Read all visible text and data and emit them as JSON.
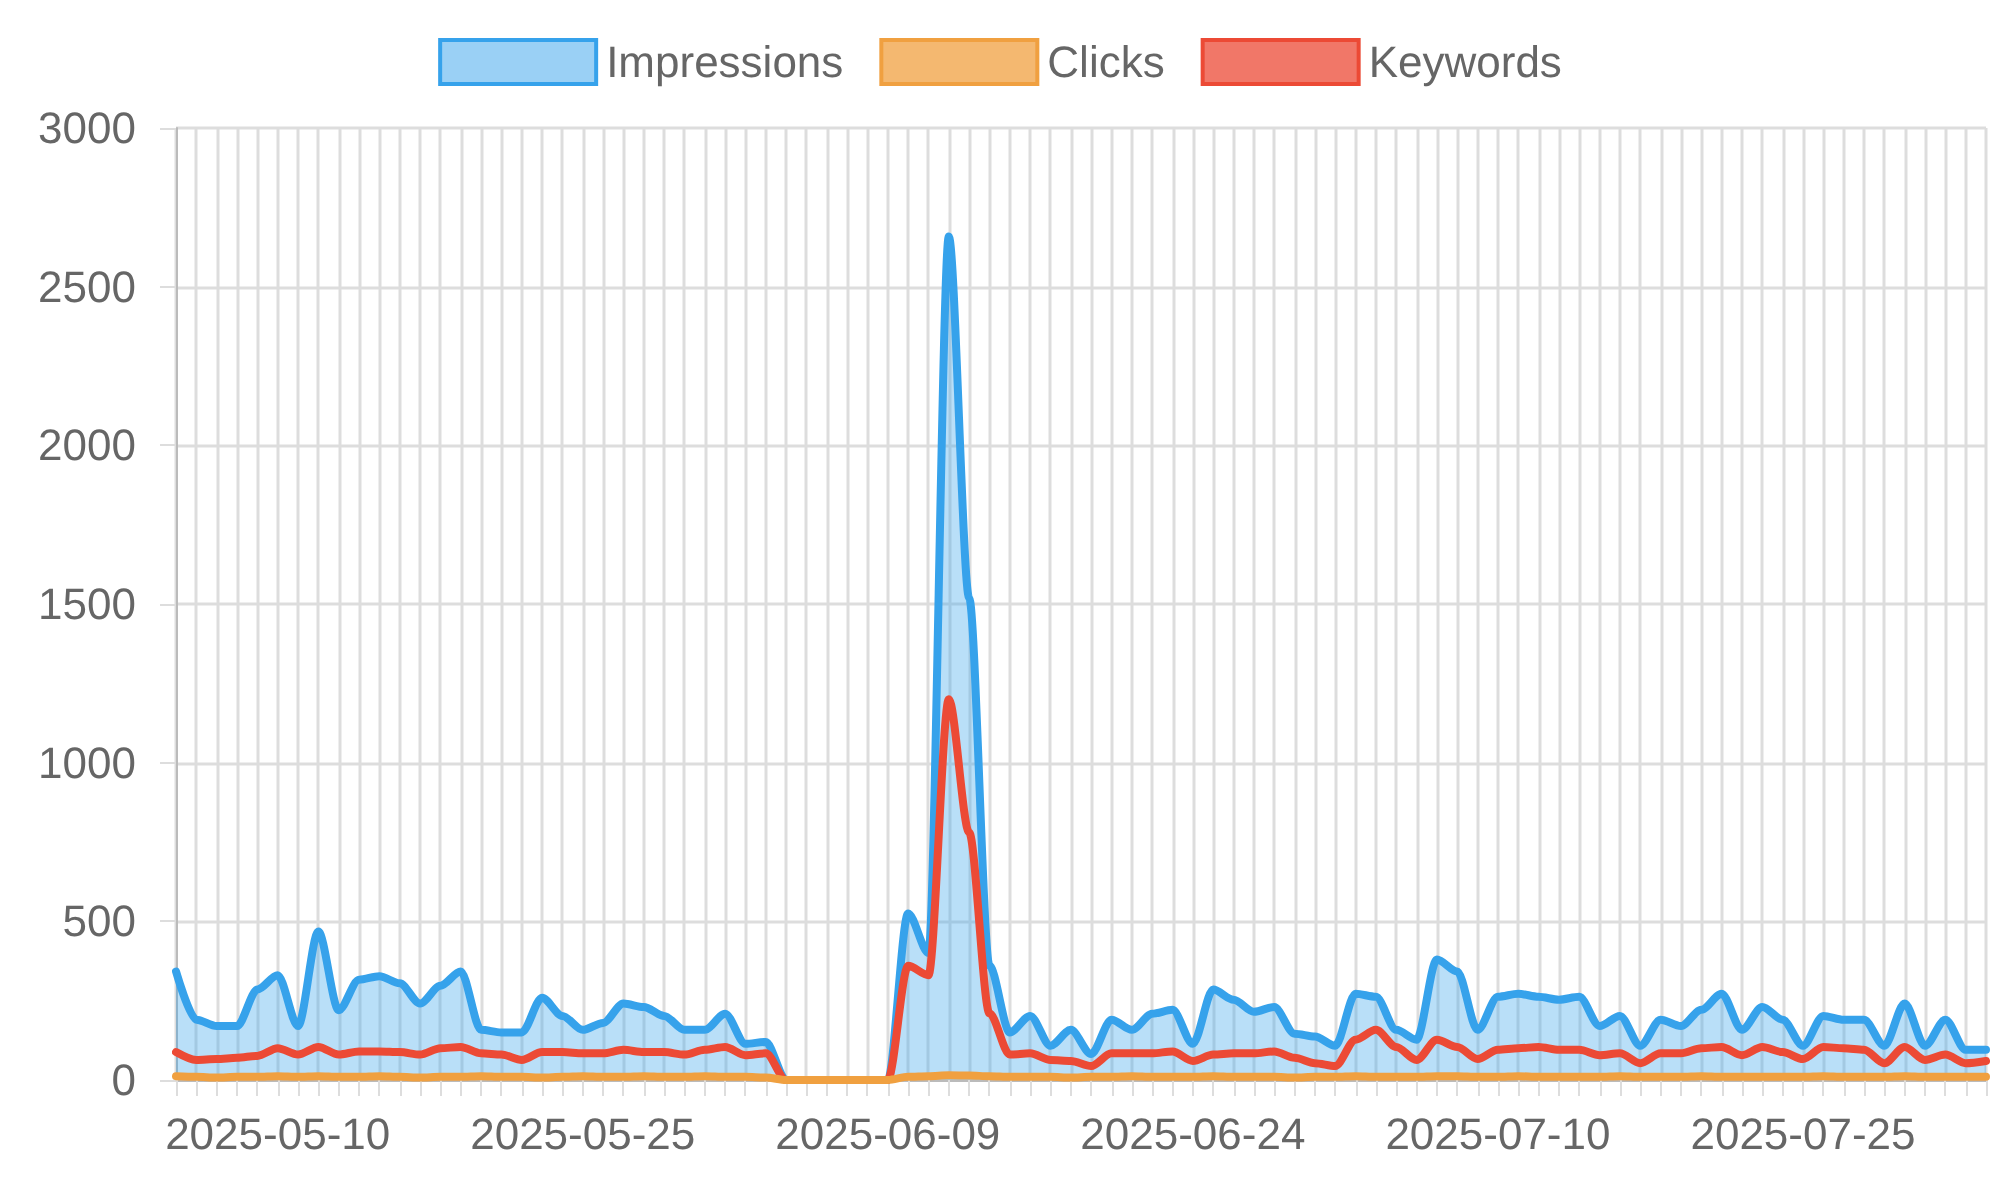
{
  "chart_data": {
    "type": "line",
    "categories": [
      null,
      null,
      null,
      null,
      null,
      "2025-05-10",
      null,
      null,
      null,
      null,
      null,
      null,
      null,
      null,
      null,
      null,
      null,
      null,
      null,
      null,
      "2025-05-25",
      null,
      null,
      null,
      null,
      null,
      null,
      null,
      null,
      null,
      null,
      null,
      null,
      null,
      null,
      "2025-06-09",
      null,
      null,
      null,
      null,
      null,
      null,
      null,
      null,
      null,
      null,
      null,
      null,
      null,
      null,
      "2025-06-24",
      null,
      null,
      null,
      null,
      null,
      null,
      null,
      null,
      null,
      null,
      null,
      null,
      null,
      null,
      "2025-07-10",
      null,
      null,
      null,
      null,
      null,
      null,
      null,
      null,
      null,
      null,
      null,
      null,
      null,
      null,
      "2025-07-25",
      null,
      null,
      null,
      null,
      null,
      null,
      null,
      null,
      null
    ],
    "series": [
      {
        "name": "Impressions",
        "type": "area",
        "color": "#36a2eb",
        "values": [
          342,
          190,
          170,
          170,
          285,
          330,
          170,
          468,
          220,
          316,
          327,
          305,
          241,
          297,
          342,
          158,
          150,
          150,
          259,
          202,
          158,
          180,
          241,
          230,
          202,
          158,
          158,
          209,
          114,
          120,
          0,
          0,
          0,
          0,
          0,
          0,
          525,
          400,
          2658,
          1519,
          360,
          150,
          202,
          108,
          158,
          82,
          190,
          158,
          209,
          221,
          114,
          285,
          253,
          215,
          230,
          146,
          137,
          108,
          272,
          262,
          158,
          127,
          380,
          342,
          158,
          262,
          272,
          262,
          253,
          262,
          170,
          202,
          108,
          190,
          170,
          221,
          272,
          158,
          230,
          190,
          108,
          202,
          190,
          190,
          108,
          241,
          108,
          190,
          95,
          95
        ]
      },
      {
        "name": "Clicks",
        "color": "#f0a040",
        "values": [
          12,
          10,
          8,
          10,
          10,
          12,
          10,
          12,
          10,
          10,
          12,
          10,
          8,
          10,
          10,
          12,
          10,
          10,
          8,
          10,
          12,
          10,
          10,
          12,
          10,
          10,
          12,
          10,
          10,
          8,
          0,
          0,
          0,
          0,
          0,
          0,
          10,
          12,
          15,
          14,
          12,
          10,
          10,
          10,
          8,
          10,
          10,
          12,
          10,
          10,
          10,
          12,
          10,
          10,
          10,
          8,
          10,
          10,
          12,
          10,
          10,
          10,
          12,
          12,
          10,
          10,
          12,
          10,
          10,
          10,
          10,
          12,
          10,
          10,
          10,
          12,
          10,
          10,
          10,
          10,
          10,
          12,
          10,
          10,
          10,
          12,
          10,
          10,
          10,
          10
        ]
      },
      {
        "name": "Keywords",
        "color": "#ec4a35",
        "values": [
          88,
          63,
          66,
          70,
          76,
          100,
          80,
          104,
          80,
          90,
          90,
          88,
          80,
          100,
          104,
          84,
          80,
          63,
          88,
          88,
          84,
          84,
          95,
          88,
          88,
          80,
          95,
          104,
          78,
          84,
          0,
          0,
          0,
          0,
          0,
          0,
          360,
          330,
          1200,
          780,
          210,
          80,
          84,
          63,
          60,
          44,
          84,
          84,
          84,
          90,
          60,
          80,
          84,
          84,
          90,
          70,
          53,
          44,
          127,
          158,
          104,
          63,
          127,
          104,
          66,
          95,
          100,
          104,
          95,
          95,
          78,
          84,
          53,
          84,
          84,
          100,
          104,
          78,
          104,
          88,
          66,
          104,
          100,
          95,
          53,
          104,
          63,
          80,
          53,
          60
        ]
      }
    ],
    "ylim": [
      0,
      3000
    ],
    "yticks": [
      0,
      500,
      1000,
      1500,
      2000,
      2500,
      3000
    ],
    "grid": true,
    "legend": "top",
    "marker": "none"
  }
}
